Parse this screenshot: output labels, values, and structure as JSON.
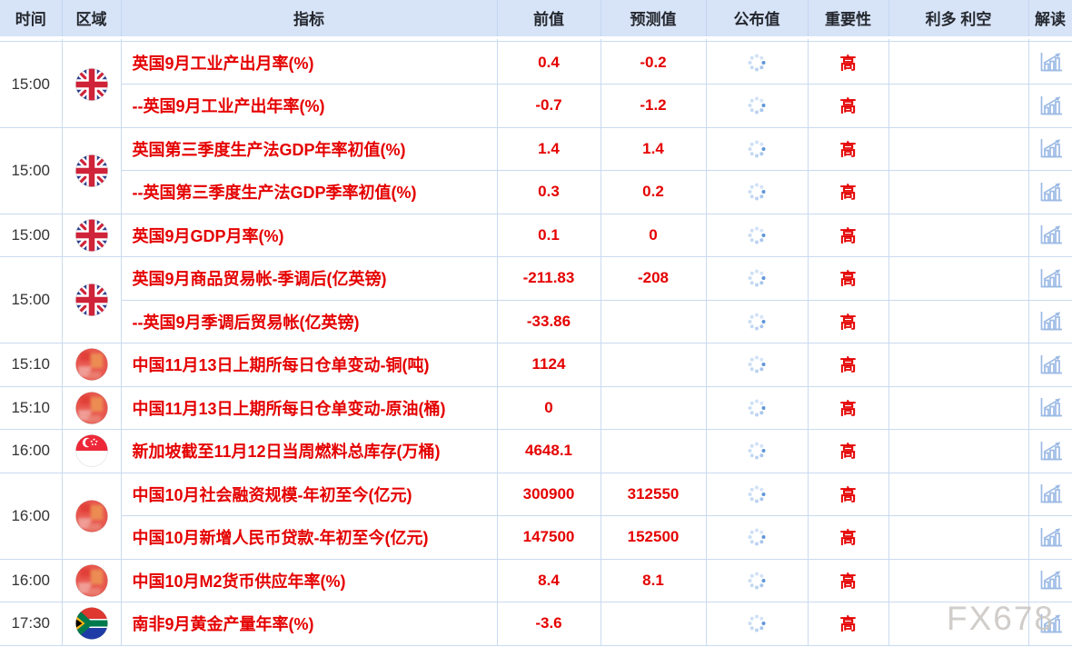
{
  "watermark": "FX678",
  "colors": {
    "accent_red": "#e50000",
    "header_bg": "#d7e4f8",
    "grid_border": "#c9daf0",
    "icon_blue": "#9cbae5",
    "spinner_accent": "#5f96d8",
    "time_text": "#333333",
    "watermark_gray": "#c8c5c1"
  },
  "table": {
    "columns": [
      {
        "key": "time",
        "label": "时间"
      },
      {
        "key": "region",
        "label": "区域"
      },
      {
        "key": "indicator",
        "label": "指标"
      },
      {
        "key": "previous",
        "label": "前值"
      },
      {
        "key": "forecast",
        "label": "预测值"
      },
      {
        "key": "published",
        "label": "公布值"
      },
      {
        "key": "importance",
        "label": "重要性"
      },
      {
        "key": "bull-bear",
        "label": "利多 利空"
      },
      {
        "key": "interpret",
        "label": "解读"
      }
    ],
    "published_state": "loading",
    "rows": [
      {
        "time": "15:00",
        "flag": "uk",
        "span": 2,
        "indicator": "英国9月工业产出月率(%)",
        "previous": "0.4",
        "forecast": "-0.2",
        "importance": "高"
      },
      {
        "indicator": "--英国9月工业产出年率(%)",
        "previous": "-0.7",
        "forecast": "-1.2",
        "importance": "高"
      },
      {
        "time": "15:00",
        "flag": "uk",
        "span": 2,
        "indicator": "英国第三季度生产法GDP年率初值(%)",
        "previous": "1.4",
        "forecast": "1.4",
        "importance": "高"
      },
      {
        "indicator": "--英国第三季度生产法GDP季率初值(%)",
        "previous": "0.3",
        "forecast": "0.2",
        "importance": "高"
      },
      {
        "time": "15:00",
        "flag": "uk",
        "span": 1,
        "indicator": "英国9月GDP月率(%)",
        "previous": "0.1",
        "forecast": "0",
        "importance": "高"
      },
      {
        "time": "15:00",
        "flag": "uk",
        "span": 2,
        "indicator": "英国9月商品贸易帐-季调后(亿英镑)",
        "previous": "-211.83",
        "forecast": "-208",
        "importance": "高"
      },
      {
        "indicator": "--英国9月季调后贸易帐(亿英镑)",
        "previous": "-33.86",
        "forecast": "",
        "importance": "高"
      },
      {
        "time": "15:10",
        "flag": "cn",
        "span": 1,
        "indicator": "中国11月13日上期所每日仓单变动-铜(吨)",
        "previous": "1124",
        "forecast": "",
        "importance": "高"
      },
      {
        "time": "15:10",
        "flag": "cn",
        "span": 1,
        "indicator": "中国11月13日上期所每日仓单变动-原油(桶)",
        "previous": "0",
        "forecast": "",
        "importance": "高"
      },
      {
        "time": "16:00",
        "flag": "sg",
        "span": 1,
        "indicator": "新加坡截至11月12日当周燃料总库存(万桶)",
        "previous": "4648.1",
        "forecast": "",
        "importance": "高"
      },
      {
        "time": "16:00",
        "flag": "cn",
        "span": 2,
        "indicator": "中国10月社会融资规模-年初至今(亿元)",
        "previous": "300900",
        "forecast": "312550",
        "importance": "高"
      },
      {
        "indicator": "中国10月新增人民币贷款-年初至今(亿元)",
        "previous": "147500",
        "forecast": "152500",
        "importance": "高"
      },
      {
        "time": "16:00",
        "flag": "cn",
        "span": 1,
        "indicator": "中国10月M2货币供应年率(%)",
        "previous": "8.4",
        "forecast": "8.1",
        "importance": "高"
      },
      {
        "time": "17:30",
        "flag": "za",
        "span": 1,
        "indicator": "南非9月黄金产量年率(%)",
        "previous": "-3.6",
        "forecast": "",
        "importance": "高"
      }
    ]
  }
}
